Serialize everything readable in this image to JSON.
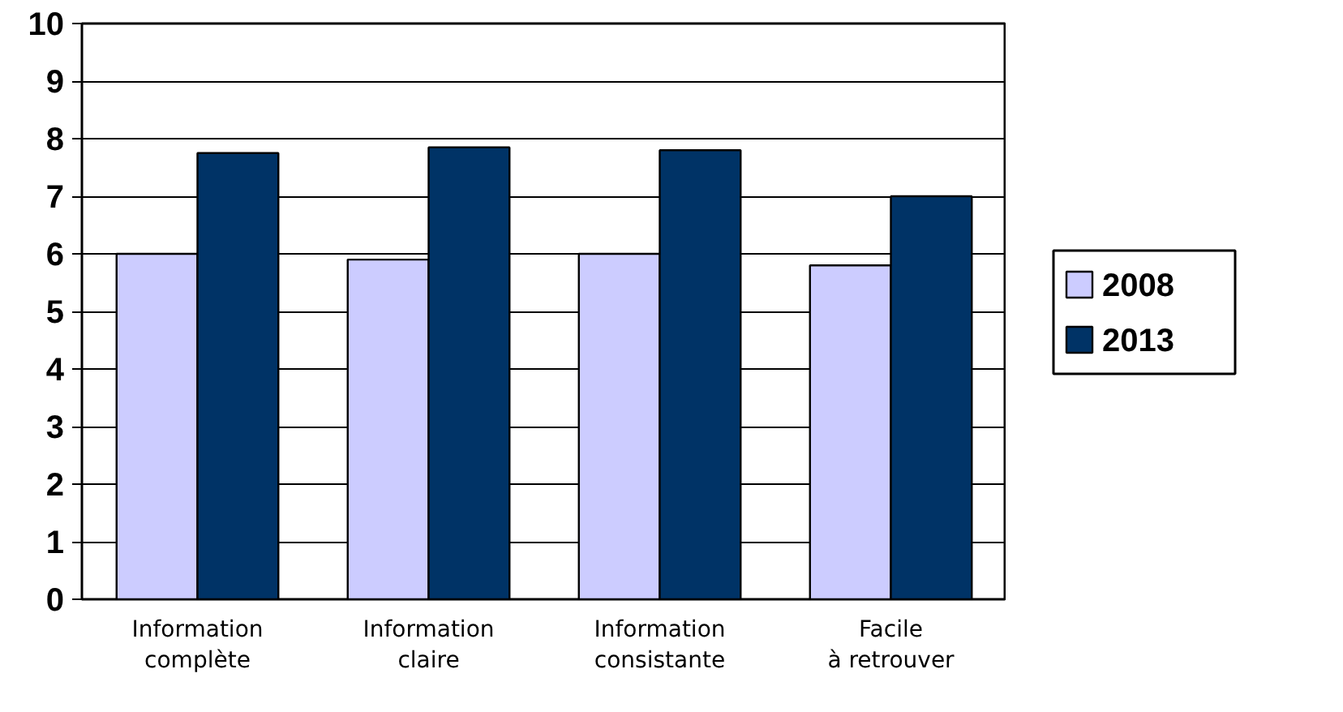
{
  "chart_data": {
    "type": "bar",
    "categories": [
      "Information complète",
      "Information claire",
      "Information consistante",
      "Facile à retrouver"
    ],
    "series": [
      {
        "name": "2008",
        "color": "#ccccff",
        "values": [
          6.0,
          5.9,
          6.0,
          5.8
        ]
      },
      {
        "name": "2013",
        "color": "#003366",
        "values": [
          7.75,
          7.85,
          7.8,
          7.0
        ]
      }
    ],
    "ylim": [
      0,
      10
    ],
    "yticks": [
      0,
      1,
      2,
      3,
      4,
      5,
      6,
      7,
      8,
      9,
      10
    ],
    "grid": "y",
    "legend": "right"
  }
}
